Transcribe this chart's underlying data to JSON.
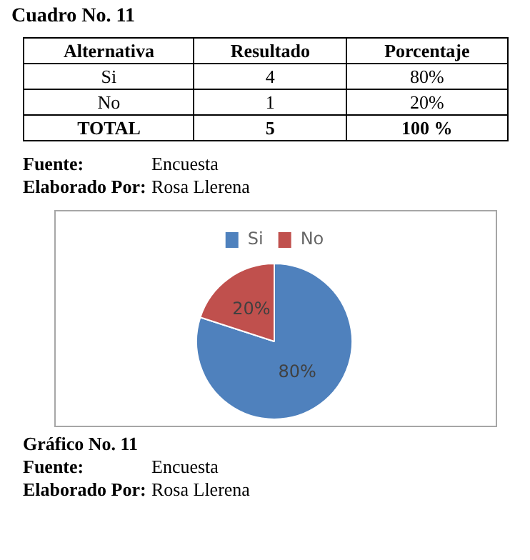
{
  "chart_data": {
    "type": "pie",
    "title": "Gráfico No. 11",
    "categories": [
      "Si",
      "No"
    ],
    "values": [
      80,
      20
    ],
    "colors": [
      "#4f81bd",
      "#c0504d"
    ],
    "value_labels": [
      "80%",
      "20%"
    ],
    "legend": "top",
    "annotations": [
      "Cuadro No. 11",
      "Alternativa",
      "Resultado",
      "Porcentaje",
      "4",
      "1",
      "TOTAL",
      "5",
      "100 %",
      "Fuente:",
      "Encuesta",
      "Elaborado Por:",
      "Rosa Llerena",
      "Fuente:",
      "Encuesta",
      "Elaborado Por:",
      "Rosa Llerena"
    ]
  }
}
